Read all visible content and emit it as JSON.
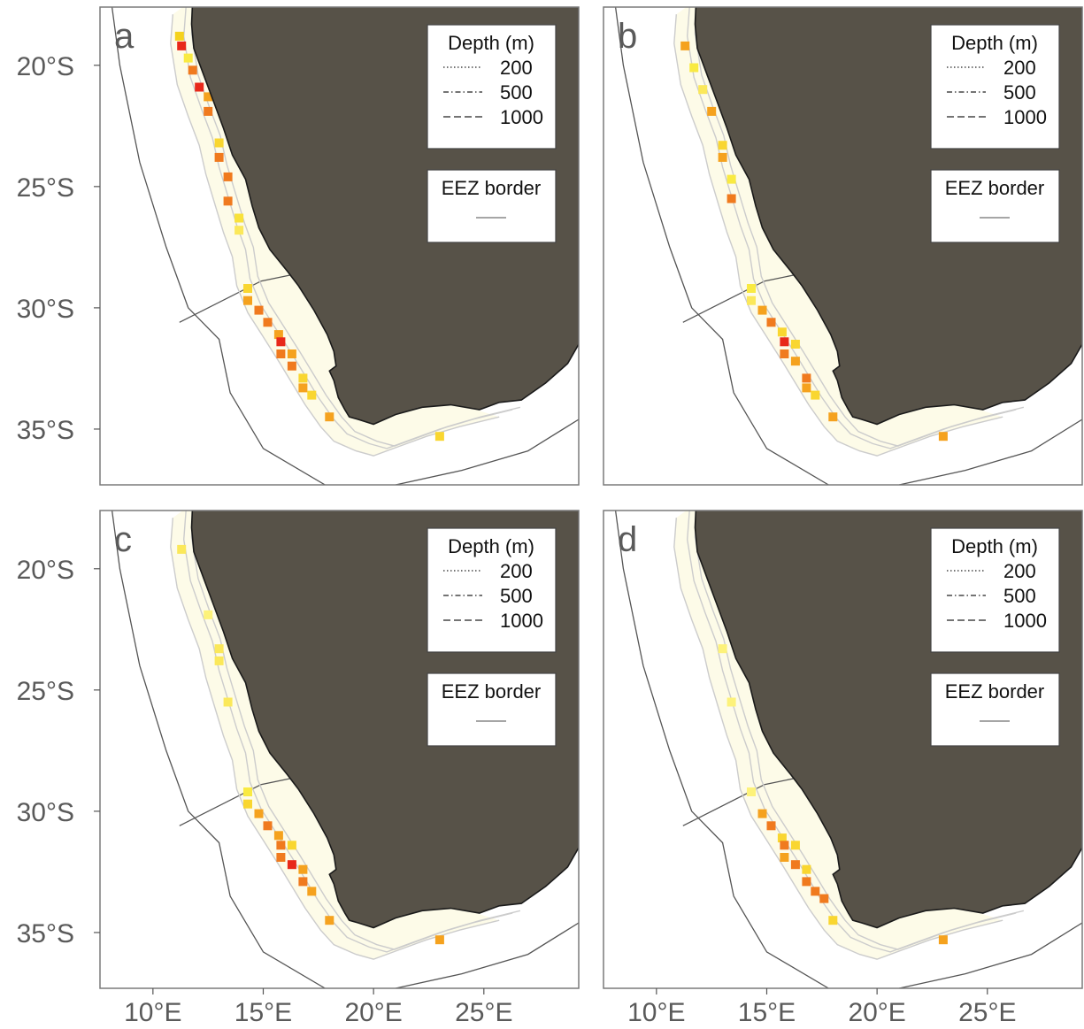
{
  "panels": [
    {
      "letter": "a",
      "cells": [
        [
          19.2,
          11.3,
          "#e8281a"
        ],
        [
          18.8,
          11.2,
          "#f5d21c"
        ],
        [
          19.7,
          11.6,
          "#f9ea42"
        ],
        [
          20.2,
          11.8,
          "#f07a1e"
        ],
        [
          20.9,
          12.1,
          "#e8281a"
        ],
        [
          21.3,
          12.5,
          "#f5a21e"
        ],
        [
          21.9,
          12.5,
          "#f07a1e"
        ],
        [
          23.2,
          13.0,
          "#f9d630"
        ],
        [
          23.8,
          13.0,
          "#f07a1e"
        ],
        [
          24.6,
          13.4,
          "#f07a1e"
        ],
        [
          25.6,
          13.4,
          "#f07a1e"
        ],
        [
          26.3,
          13.9,
          "#f9e23a"
        ],
        [
          26.8,
          13.9,
          "#fbe85a"
        ],
        [
          29.2,
          14.3,
          "#f9d630"
        ],
        [
          29.7,
          14.3,
          "#f5a21e"
        ],
        [
          30.1,
          14.8,
          "#f07a1e"
        ],
        [
          30.6,
          15.2,
          "#f07a1e"
        ],
        [
          31.1,
          15.7,
          "#f5a21e"
        ],
        [
          31.4,
          15.8,
          "#e8281a"
        ],
        [
          31.9,
          15.8,
          "#f07a1e"
        ],
        [
          31.9,
          16.3,
          "#f5a21e"
        ],
        [
          32.4,
          16.3,
          "#f07a1e"
        ],
        [
          32.9,
          16.8,
          "#f9d630"
        ],
        [
          33.3,
          16.8,
          "#f5a21e"
        ],
        [
          33.6,
          17.2,
          "#f9d630"
        ],
        [
          34.5,
          18.0,
          "#f5a21e"
        ],
        [
          35.3,
          23.0,
          "#f9d630"
        ]
      ]
    },
    {
      "letter": "b",
      "cells": [
        [
          19.2,
          11.3,
          "#f5a21e"
        ],
        [
          20.1,
          11.7,
          "#f9ea42"
        ],
        [
          21.0,
          12.1,
          "#fbe85a"
        ],
        [
          21.9,
          12.5,
          "#f5a21e"
        ],
        [
          23.3,
          13.0,
          "#f9d630"
        ],
        [
          23.8,
          13.0,
          "#f5a21e"
        ],
        [
          24.7,
          13.4,
          "#f9ea42"
        ],
        [
          25.5,
          13.4,
          "#f07a1e"
        ],
        [
          29.2,
          14.3,
          "#f9ea42"
        ],
        [
          29.7,
          14.3,
          "#fbe85a"
        ],
        [
          30.1,
          14.8,
          "#f5a21e"
        ],
        [
          30.6,
          15.2,
          "#f07a1e"
        ],
        [
          31.0,
          15.7,
          "#f9d630"
        ],
        [
          31.4,
          15.8,
          "#e8281a"
        ],
        [
          31.5,
          16.3,
          "#f9d630"
        ],
        [
          31.9,
          15.8,
          "#f07a1e"
        ],
        [
          32.2,
          16.3,
          "#f5a21e"
        ],
        [
          32.9,
          16.8,
          "#f07a1e"
        ],
        [
          33.3,
          16.8,
          "#f5a21e"
        ],
        [
          33.6,
          17.2,
          "#f9d630"
        ],
        [
          34.5,
          18.0,
          "#f5a21e"
        ],
        [
          35.3,
          23.0,
          "#f5a21e"
        ]
      ]
    },
    {
      "letter": "c",
      "cells": [
        [
          19.2,
          11.3,
          "#fbe85a"
        ],
        [
          21.9,
          12.5,
          "#fdf27a"
        ],
        [
          23.3,
          13.0,
          "#fbe85a"
        ],
        [
          23.8,
          13.0,
          "#fbe85a"
        ],
        [
          25.5,
          13.4,
          "#fbe85a"
        ],
        [
          29.2,
          14.3,
          "#f9ea42"
        ],
        [
          29.7,
          14.3,
          "#f9d630"
        ],
        [
          30.1,
          14.8,
          "#f5a21e"
        ],
        [
          30.6,
          15.2,
          "#f07a1e"
        ],
        [
          31.0,
          15.7,
          "#f5a21e"
        ],
        [
          31.4,
          15.8,
          "#f07a1e"
        ],
        [
          31.4,
          16.3,
          "#f9d630"
        ],
        [
          31.9,
          15.8,
          "#f07a1e"
        ],
        [
          32.2,
          16.3,
          "#e8281a"
        ],
        [
          32.4,
          16.8,
          "#f5a21e"
        ],
        [
          32.9,
          16.8,
          "#f07a1e"
        ],
        [
          33.3,
          17.2,
          "#f5a21e"
        ],
        [
          34.5,
          18.0,
          "#f5a21e"
        ],
        [
          35.3,
          23.0,
          "#f5a21e"
        ]
      ]
    },
    {
      "letter": "d",
      "cells": [
        [
          30.1,
          14.8,
          "#f5a21e"
        ],
        [
          30.6,
          15.2,
          "#f07a1e"
        ],
        [
          31.1,
          15.7,
          "#f9d630"
        ],
        [
          31.4,
          15.8,
          "#f07a1e"
        ],
        [
          31.4,
          16.3,
          "#f9d630"
        ],
        [
          31.9,
          15.8,
          "#f5a21e"
        ],
        [
          32.2,
          16.3,
          "#f07a1e"
        ],
        [
          32.4,
          16.8,
          "#f9d630"
        ],
        [
          32.9,
          16.8,
          "#f07a1e"
        ],
        [
          33.3,
          17.2,
          "#f07a1e"
        ],
        [
          33.6,
          17.6,
          "#f07a1e"
        ],
        [
          34.5,
          18.0,
          "#f9d630"
        ],
        [
          35.3,
          23.0,
          "#f5a21e"
        ],
        [
          29.2,
          14.3,
          "#fdf27a"
        ],
        [
          25.5,
          13.4,
          "#fdf27a"
        ],
        [
          23.3,
          13.0,
          "#fdf27a"
        ]
      ]
    }
  ],
  "axes": {
    "lat_ticks": [
      "20°S",
      "25°S",
      "30°S",
      "35°S"
    ],
    "lat_values": [
      20,
      25,
      30,
      35
    ],
    "lon_ticks": [
      "10°E",
      "15°E",
      "20°E",
      "25°E"
    ],
    "lon_values": [
      10,
      15,
      20,
      25
    ],
    "lon_range": [
      7.6,
      29.3
    ],
    "lat_range": [
      17.6,
      37.3
    ]
  },
  "legend": {
    "depth_title": "Depth (m)",
    "depth_values": [
      "200",
      "500",
      "1000"
    ],
    "eez_title": "EEZ border"
  },
  "colors": {
    "land": "#575248",
    "eez_line": "#555555",
    "depth_contour": "#cccccc",
    "shelf_fill": "#fdfbe8",
    "frame": "#7a7a7a"
  }
}
